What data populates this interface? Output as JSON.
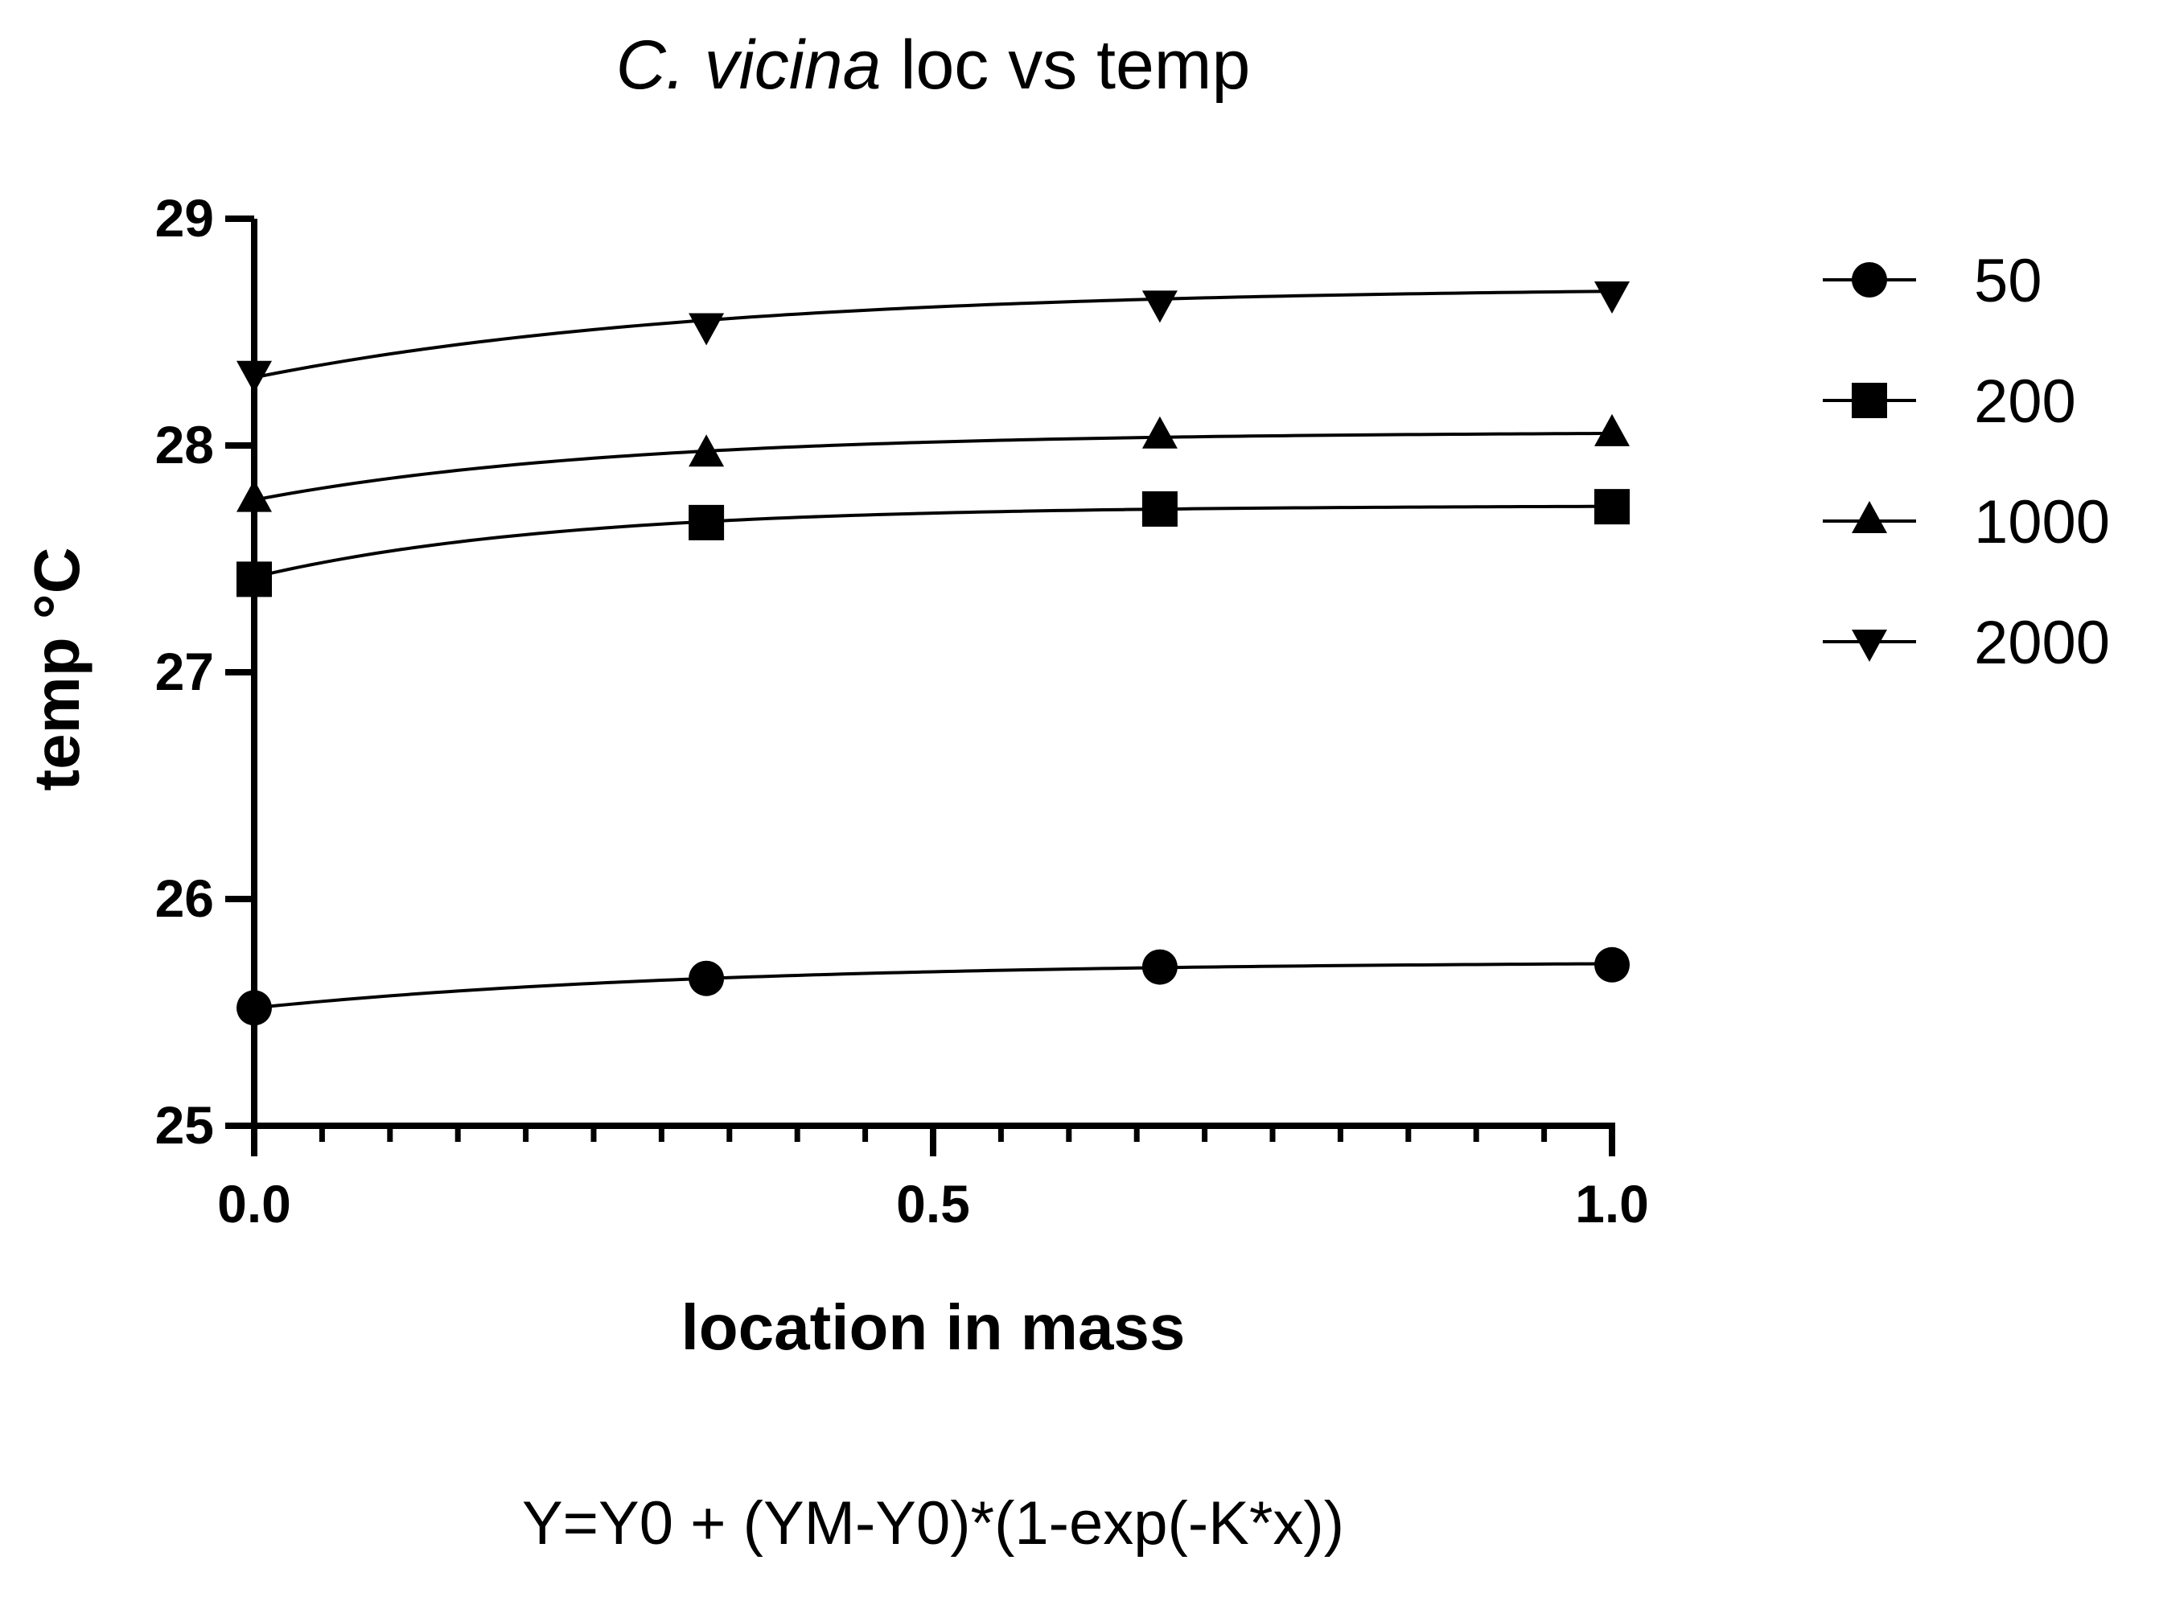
{
  "chart_data": {
    "type": "line",
    "title": {
      "italic": "C. vicina",
      "rest": " loc vs temp"
    },
    "xlabel": "location in mass",
    "ylabel": "temp °C",
    "xlim": [
      0,
      1
    ],
    "ylim": [
      25,
      29
    ],
    "x_ticks": [
      0.0,
      0.5,
      1.0
    ],
    "x_tick_labels": [
      "0.0",
      "0.5",
      "1.0"
    ],
    "y_ticks": [
      25,
      26,
      27,
      28,
      29
    ],
    "y_tick_labels": [
      "25",
      "26",
      "27",
      "28",
      "29"
    ],
    "x_minor_step": 0.05,
    "grid": false,
    "legend_position": "right",
    "x": [
      0.0,
      0.333,
      0.667,
      1.0
    ],
    "series": [
      {
        "name": "50",
        "marker": "circle",
        "values": [
          25.52,
          25.65,
          25.7,
          25.71
        ],
        "fit": {
          "Y0": 25.52,
          "YM": 25.725,
          "K": 3.0
        }
      },
      {
        "name": "200",
        "marker": "square",
        "values": [
          27.41,
          27.66,
          27.72,
          27.73
        ],
        "fit": {
          "Y0": 27.42,
          "YM": 27.735,
          "K": 4.5
        }
      },
      {
        "name": "1000",
        "marker": "triangle-up",
        "values": [
          27.76,
          27.96,
          28.04,
          28.05
        ],
        "fit": {
          "Y0": 27.76,
          "YM": 28.06,
          "K": 3.8
        }
      },
      {
        "name": "2000",
        "marker": "triangle-down",
        "values": [
          28.32,
          28.53,
          28.63,
          28.67
        ],
        "fit": {
          "Y0": 28.3,
          "YM": 28.7,
          "K": 3.0
        }
      }
    ],
    "equation": "Y=Y0 + (YM-Y0)*(1-exp(-K*x))"
  }
}
